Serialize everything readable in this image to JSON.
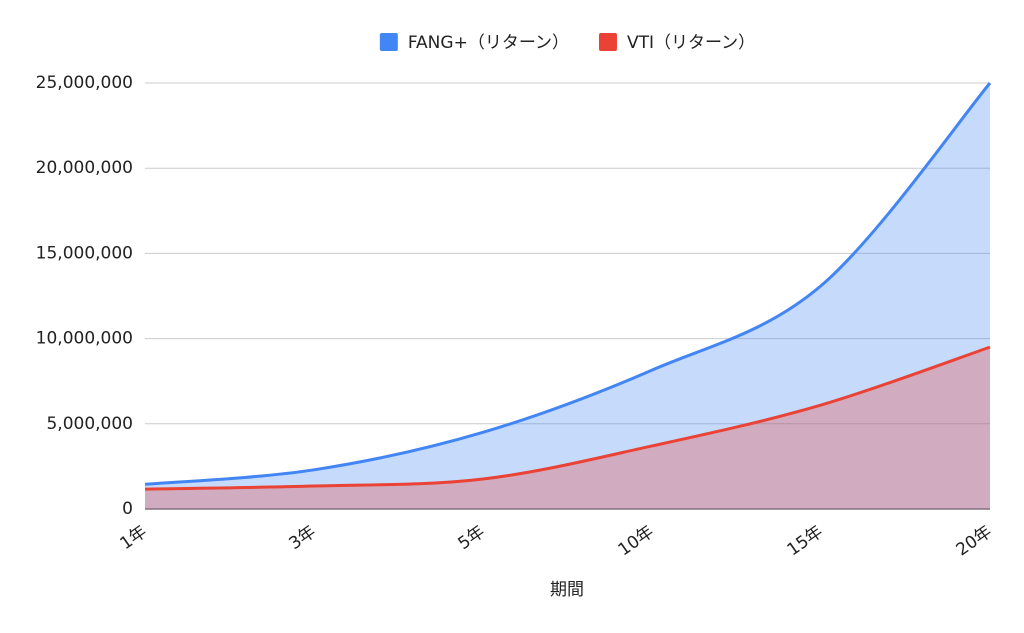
{
  "chart_data": {
    "type": "area",
    "categories": [
      "1年",
      "3年",
      "5年",
      "10年",
      "15年",
      "20年"
    ],
    "series": [
      {
        "name": "FANG+（リターン）",
        "color": "#4285f4",
        "values": [
          1450000,
          2300000,
          4500000,
          8150000,
          13100000,
          25000000
        ]
      },
      {
        "name": "VTI（リターン）",
        "color": "#ea4335",
        "values": [
          1170000,
          1350000,
          1760000,
          3700000,
          6100000,
          9500000
        ]
      }
    ],
    "ylim": [
      0,
      25000000
    ],
    "yticks": [
      0,
      {
        "value": 5000000,
        "label": "5,000,000"
      },
      {
        "value": 10000000,
        "label": "10,000,000"
      },
      {
        "value": 15000000,
        "label": "15,000,000"
      },
      {
        "value": 20000000,
        "label": "20,000,000"
      },
      {
        "value": 25000000,
        "label": "25,000,000"
      }
    ],
    "x_label": "期間",
    "grid": true,
    "legend": "top"
  }
}
